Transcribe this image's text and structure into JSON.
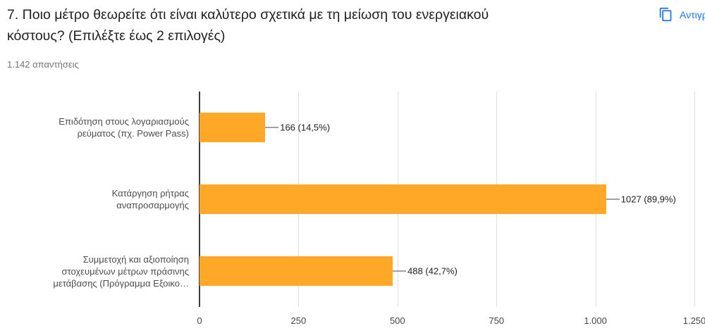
{
  "header": {
    "title": "7. Ποιο μέτρο θεωρείτε ότι είναι καλύτερο σχετικά με τη μείωση του ενεργειακού κόστους? (Επιλέξτε έως 2 επιλογές)",
    "responses_count": "1.142 απαντήσεις",
    "copy_button_label": "Αντιγρ",
    "accent_color": "#1a73e8"
  },
  "chart_data": {
    "type": "bar",
    "orientation": "horizontal",
    "title": "",
    "xlabel": "",
    "ylabel": "",
    "grid": true,
    "bar_color": "#FFA726",
    "categories": [
      "Επιδότηση στους λογαριασμούς ρεύματος (πχ. Power Pass)",
      "Κατάργηση ρήτρας αναπροσαρμογής",
      "Συμμετοχή και αξιοποίηση στοχευμένων μέτρων πράσινης μετάβασης (Πρόγραμμα Εξοικο…"
    ],
    "category_lines": [
      [
        "Επιδότηση στους λογαριασμούς",
        "ρεύματος (πχ. Power Pass)"
      ],
      [
        "Κατάργηση ρήτρας",
        "αναπροσαρμογής"
      ],
      [
        "Συμμετοχή και αξιοποίηση",
        "στοχευμένων μέτρων πράσινης",
        "μετάβασης (Πρόγραμμα Εξοικο…"
      ]
    ],
    "values": [
      166,
      1027,
      488
    ],
    "data_labels": [
      "166 (14,5%)",
      "1027 (89,9%)",
      "488 (42,7%)"
    ],
    "xlim": [
      0,
      1250
    ],
    "xticks": [
      0,
      250,
      500,
      750,
      1000,
      1250
    ],
    "xtick_labels": [
      "0",
      "250",
      "500",
      "750",
      "1.000",
      "1.250"
    ]
  }
}
